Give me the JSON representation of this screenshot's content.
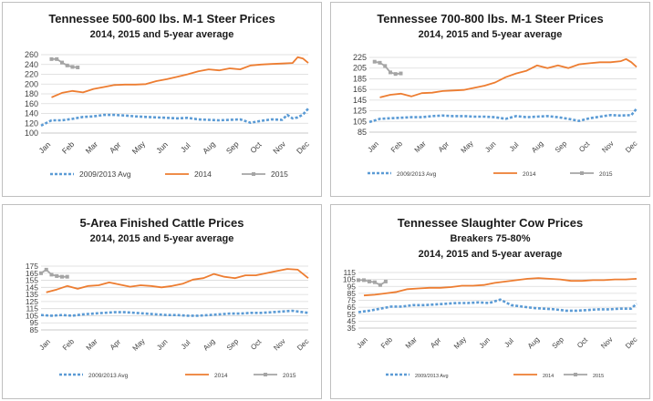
{
  "colors": {
    "avg": "#5b9bd5",
    "y2014": "#ed7d31",
    "y2015": "#a5a5a5",
    "grid": "#d9d9d9"
  },
  "chart_data": [
    {
      "type": "line",
      "title": "Tennessee 500-600 lbs. M-1 Steer Prices",
      "subtitle": "2014, 2015 and 5-year average",
      "x_ticks": [
        "Jan",
        "Feb",
        "Mar",
        "Apr",
        "May",
        "Jun",
        "Jul",
        "Aug",
        "Sep",
        "Oct",
        "Nov",
        "Dec"
      ],
      "x_range": [
        1,
        52
      ],
      "ylim": [
        100,
        260
      ],
      "y_ticks": [
        100,
        120,
        140,
        160,
        180,
        200,
        220,
        240,
        260
      ],
      "grid": true,
      "legend_position": "bottom",
      "series": [
        {
          "name": "2009/2013 Avg",
          "style": "dashed",
          "x": [
            1,
            3,
            5,
            7,
            9,
            11,
            13,
            15,
            17,
            19,
            21,
            23,
            25,
            27,
            29,
            31,
            33,
            35,
            37,
            39,
            41,
            43,
            45,
            47,
            48,
            49,
            50,
            51,
            52
          ],
          "values": [
            115,
            126,
            126,
            129,
            133,
            134,
            137,
            137,
            136,
            134,
            133,
            132,
            131,
            130,
            131,
            128,
            127,
            126,
            127,
            128,
            121,
            125,
            128,
            127,
            137,
            130,
            132,
            138,
            150
          ]
        },
        {
          "name": "2014",
          "style": "solid",
          "x": [
            3,
            5,
            7,
            9,
            11,
            13,
            15,
            17,
            19,
            21,
            23,
            25,
            27,
            29,
            31,
            33,
            35,
            37,
            39,
            41,
            43,
            45,
            47,
            49,
            50,
            51,
            52
          ],
          "values": [
            173,
            182,
            186,
            183,
            190,
            194,
            198,
            199,
            199,
            200,
            206,
            210,
            215,
            220,
            226,
            230,
            228,
            232,
            230,
            238,
            240,
            241,
            242,
            243,
            255,
            252,
            243
          ]
        },
        {
          "name": "2015",
          "style": "marker",
          "x": [
            3,
            4,
            5,
            6,
            7,
            8
          ],
          "values": [
            251,
            251,
            244,
            238,
            235,
            234
          ]
        }
      ]
    },
    {
      "type": "line",
      "title": "Tennessee 700-800 lbs. M-1 Steer Prices",
      "subtitle": "2014, 2015 and 5-year average",
      "x_ticks": [
        "Jan",
        "Feb",
        "Mar",
        "Apr",
        "May",
        "Jun",
        "Jul",
        "Aug",
        "Sep",
        "Oct",
        "Nov",
        "Dec"
      ],
      "x_range": [
        1,
        52
      ],
      "ylim": [
        85,
        225
      ],
      "y_ticks": [
        85,
        105,
        125,
        145,
        165,
        185,
        205,
        225
      ],
      "grid": true,
      "legend_position": "bottom",
      "series": [
        {
          "name": "2009/2013 Avg",
          "style": "dashed",
          "x": [
            1,
            3,
            5,
            7,
            9,
            11,
            13,
            15,
            17,
            19,
            21,
            23,
            25,
            27,
            29,
            31,
            33,
            35,
            37,
            39,
            41,
            43,
            45,
            47,
            49,
            51,
            52
          ],
          "values": [
            104,
            110,
            111,
            112,
            113,
            113,
            115,
            116,
            115,
            115,
            114,
            114,
            113,
            110,
            115,
            113,
            114,
            115,
            113,
            110,
            106,
            111,
            114,
            117,
            116,
            117,
            129
          ]
        },
        {
          "name": "2014",
          "style": "solid",
          "x": [
            3,
            5,
            7,
            9,
            11,
            13,
            15,
            17,
            19,
            21,
            23,
            25,
            27,
            29,
            31,
            33,
            35,
            37,
            39,
            41,
            43,
            45,
            47,
            49,
            50,
            51,
            52
          ],
          "values": [
            150,
            155,
            157,
            152,
            158,
            159,
            162,
            163,
            164,
            168,
            172,
            178,
            188,
            195,
            200,
            210,
            205,
            210,
            205,
            212,
            214,
            216,
            216,
            218,
            222,
            216,
            207
          ]
        },
        {
          "name": "2015",
          "style": "marker",
          "x": [
            2,
            3,
            4,
            5,
            6,
            7
          ],
          "values": [
            217,
            215,
            209,
            197,
            194,
            195
          ]
        }
      ]
    },
    {
      "type": "line",
      "title": "5-Area Finished Cattle Prices",
      "subtitle": "2014, 2015 and 5-year average",
      "x_ticks": [
        "Jan",
        "Feb",
        "Mar",
        "Apr",
        "May",
        "Jun",
        "Jul",
        "Aug",
        "Sep",
        "Oct",
        "Nov",
        "Dec"
      ],
      "x_range": [
        1,
        52
      ],
      "ylim": [
        85,
        175
      ],
      "y_ticks": [
        85,
        95,
        105,
        115,
        125,
        135,
        145,
        155,
        165,
        175
      ],
      "grid": true,
      "legend_position": "bottom",
      "series": [
        {
          "name": "2009/2013 Avg",
          "style": "dashed",
          "x": [
            1,
            3,
            5,
            7,
            9,
            11,
            13,
            15,
            17,
            19,
            21,
            23,
            25,
            27,
            29,
            31,
            33,
            35,
            37,
            39,
            41,
            43,
            45,
            47,
            49,
            51,
            52
          ],
          "values": [
            106,
            105,
            106,
            105,
            107,
            108,
            109,
            110,
            110,
            109,
            108,
            107,
            106,
            106,
            105,
            105,
            106,
            107,
            108,
            108,
            109,
            109,
            110,
            111,
            112,
            110,
            109
          ]
        },
        {
          "name": "2014",
          "style": "solid",
          "x": [
            2,
            4,
            6,
            8,
            10,
            12,
            14,
            16,
            18,
            20,
            22,
            24,
            26,
            28,
            30,
            32,
            34,
            36,
            38,
            40,
            42,
            44,
            46,
            48,
            50,
            52
          ],
          "values": [
            138,
            142,
            147,
            143,
            147,
            148,
            152,
            149,
            146,
            148,
            147,
            145,
            147,
            150,
            156,
            158,
            164,
            160,
            158,
            162,
            162,
            165,
            168,
            171,
            170,
            158
          ]
        },
        {
          "name": "2015",
          "style": "marker",
          "x": [
            1,
            2,
            3,
            4,
            5,
            6
          ],
          "values": [
            165,
            170,
            163,
            161,
            160,
            160
          ]
        }
      ]
    },
    {
      "type": "line",
      "title": "Tennessee Slaughter Cow Prices",
      "subtitle": "Breakers 75-80%",
      "subtitle2": "2014, 2015 and 5-year average",
      "x_ticks": [
        "Jan",
        "Feb",
        "Mar",
        "Apr",
        "May",
        "Jun",
        "Jul",
        "Aug",
        "Sep",
        "Oct",
        "Nov",
        "Dec"
      ],
      "x_range": [
        1,
        52
      ],
      "ylim": [
        35,
        115
      ],
      "y_ticks": [
        35,
        45,
        55,
        65,
        75,
        85,
        95,
        105,
        115
      ],
      "grid": true,
      "legend_position": "bottom",
      "series": [
        {
          "name": "2009/2013 Avg",
          "style": "dashed",
          "x": [
            1,
            3,
            5,
            7,
            9,
            11,
            13,
            15,
            17,
            19,
            21,
            23,
            25,
            27,
            29,
            31,
            33,
            35,
            37,
            39,
            41,
            43,
            45,
            47,
            49,
            51,
            52
          ],
          "values": [
            58,
            60,
            63,
            66,
            66,
            68,
            68,
            69,
            70,
            71,
            71,
            72,
            71,
            76,
            68,
            66,
            64,
            63,
            62,
            60,
            60,
            61,
            62,
            62,
            63,
            63,
            70
          ]
        },
        {
          "name": "2014",
          "style": "solid",
          "x": [
            2,
            4,
            6,
            8,
            10,
            12,
            14,
            16,
            18,
            20,
            22,
            24,
            26,
            28,
            30,
            32,
            34,
            36,
            38,
            40,
            42,
            44,
            46,
            48,
            50,
            52
          ],
          "values": [
            82,
            83,
            85,
            87,
            91,
            92,
            93,
            93,
            94,
            96,
            96,
            97,
            100,
            102,
            104,
            106,
            107,
            106,
            105,
            103,
            103,
            104,
            104,
            105,
            105,
            106
          ]
        },
        {
          "name": "2015",
          "style": "marker",
          "x": [
            1,
            2,
            3,
            4,
            5,
            6
          ],
          "values": [
            104,
            104,
            102,
            101,
            97,
            102
          ]
        }
      ]
    }
  ]
}
